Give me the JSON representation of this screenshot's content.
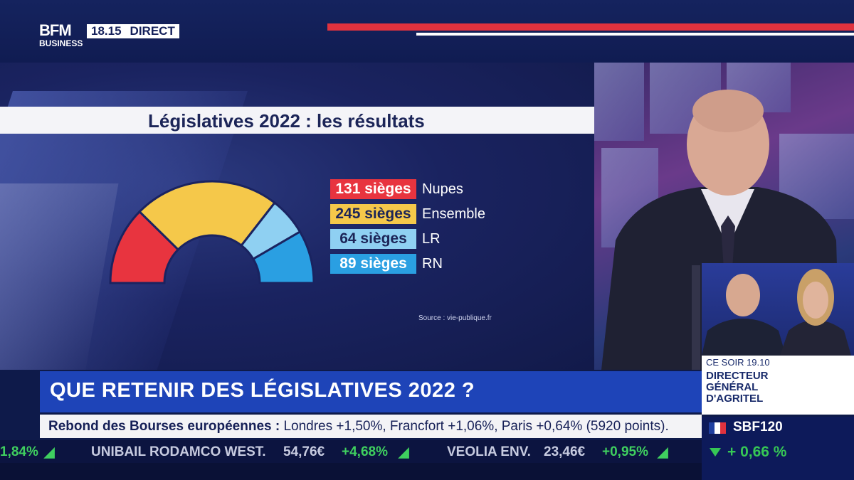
{
  "header": {
    "logo_line1": "BFM",
    "logo_line2": "BUSINESS",
    "time": "18.15",
    "live_label": "DIRECT"
  },
  "graphic": {
    "title": "Législatives 2022 : les résultats",
    "source": "Source : vie-publique.fr",
    "results": [
      {
        "seats_label": "131 sièges",
        "party": "Nupes",
        "seats": 131,
        "color": "#e8343f"
      },
      {
        "seats_label": "245 sièges",
        "party": "Ensemble",
        "seats": 245,
        "color": "#f5c84a"
      },
      {
        "seats_label": "64 sièges",
        "party": "LR",
        "seats": 64,
        "color": "#8fd0f2"
      },
      {
        "seats_label": "89 sièges",
        "party": "RN",
        "seats": 89,
        "color": "#2a9fe2"
      }
    ]
  },
  "headline": "QUE RETENIR DES LÉGISLATIVES 2022 ?",
  "info_ticker": {
    "bold": "Rebond des Bourses européennes :",
    "rest": " Londres +1,50%, Francfort +1,06%, Paris +0,64% (5920 points)."
  },
  "stock_ticker": [
    {
      "text": "1,84%",
      "kind": "chg"
    },
    {
      "text": "UNIBAIL RODAMCO WEST.",
      "kind": "name"
    },
    {
      "text": "54,76€",
      "kind": "price"
    },
    {
      "text": "+4,68%",
      "kind": "chg"
    },
    {
      "text": "VEOLIA ENV.",
      "kind": "name"
    },
    {
      "text": "23,46€",
      "kind": "price"
    },
    {
      "text": "+0,95%",
      "kind": "chg"
    }
  ],
  "promo": {
    "when": "CE SOIR 19.10",
    "line1": "DIRECTEUR",
    "line2": "GÉNÉRAL",
    "line3": "D'AGRITEL"
  },
  "index": {
    "name": "SBF120",
    "value": "+ 0,66 %"
  }
}
